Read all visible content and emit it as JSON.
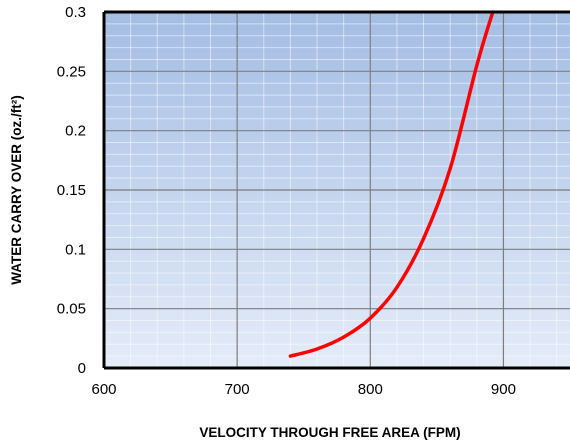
{
  "chart_data": {
    "type": "line",
    "title": "",
    "xlabel": "VELOCITY THROUGH FREE AREA (FPM)",
    "ylabel": "WATER CARRY OVER (oz./ft²)",
    "xlim": [
      600,
      950
    ],
    "ylim": [
      0,
      0.3
    ],
    "x_ticks": [
      600,
      700,
      800,
      900
    ],
    "x_tick_labels": [
      "600",
      "700",
      "800",
      "900"
    ],
    "y_ticks": [
      0,
      0.05,
      0.1,
      0.15,
      0.2,
      0.25,
      0.3
    ],
    "y_tick_labels": [
      "0",
      "0.05",
      "0.1",
      "0.15",
      "0.2",
      "0.25",
      "0.3"
    ],
    "grid": true,
    "minor_grid": {
      "x_step": 20,
      "y_step": 0.01
    },
    "legend": "none",
    "background_gradient": [
      "#a4bde4",
      "#e4ecf8"
    ],
    "series": [
      {
        "color": "#ff0000",
        "x": [
          740,
          760,
          780,
          800,
          820,
          840,
          860,
          880,
          892
        ],
        "y": [
          0.01,
          0.016,
          0.026,
          0.042,
          0.068,
          0.109,
          0.168,
          0.255,
          0.3
        ]
      }
    ]
  }
}
